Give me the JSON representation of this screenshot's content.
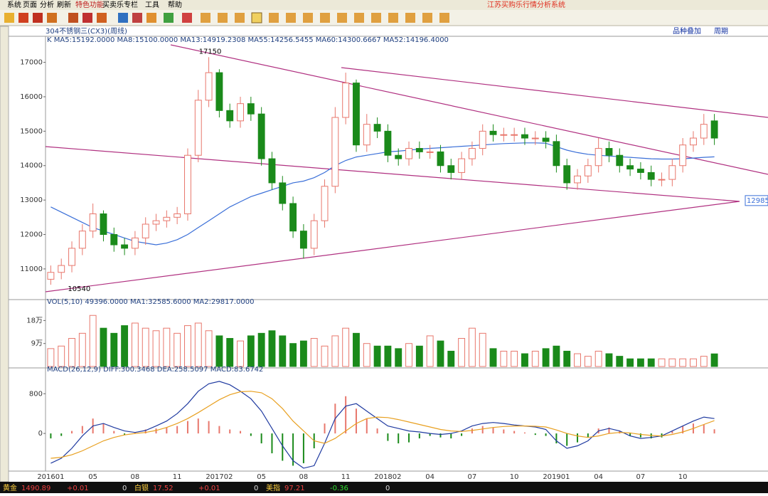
{
  "title": "江苏买购乐行情分析系统",
  "menu": [
    "系统",
    "页面",
    "分析",
    "刷新",
    "特色功能",
    "买卖乐专栏",
    "工具",
    "帮助"
  ],
  "toolbar_links": [
    "品种叠加",
    "周期"
  ],
  "instrument": "304不锈钢三(CX3)(周线)",
  "chart_data": [
    {
      "type": "candlestick",
      "indicator": "K  MA5:15192.0000  MA8:15100.0000  MA13:14919.2308  MA55:14256.5455  MA60:14300.6667  MA52:14196.4000",
      "open": [
        10700,
        10900,
        11100,
        11600,
        12100,
        12600,
        12000,
        11700,
        11600,
        11900,
        12300,
        12400,
        12500,
        12600,
        14300,
        15900,
        16700,
        15600,
        15300,
        15800,
        15500,
        14200,
        13500,
        12900,
        12100,
        11600,
        12400,
        13400,
        15400,
        16400,
        14600,
        15200,
        15000,
        14300,
        14200,
        14500,
        14400,
        14400,
        14000,
        13800,
        14200,
        14500,
        15000,
        14900,
        14900,
        14900,
        14800,
        14800,
        14700,
        14000,
        13500,
        13700,
        14000,
        14500,
        14300,
        14000,
        13900,
        13800,
        13600,
        13600,
        14000,
        14600,
        14800,
        15300
      ],
      "high": [
        11100,
        11300,
        11800,
        12300,
        12900,
        12700,
        12200,
        11900,
        12100,
        12500,
        12600,
        12700,
        12800,
        14500,
        16200,
        17150,
        16800,
        15800,
        16000,
        16000,
        15700,
        14400,
        13700,
        13100,
        12300,
        12600,
        13600,
        15700,
        16700,
        16500,
        15500,
        15400,
        15200,
        14500,
        14700,
        14700,
        14600,
        14600,
        14200,
        14400,
        14700,
        15200,
        15200,
        15100,
        15100,
        15100,
        15000,
        15000,
        14900,
        14200,
        13900,
        14200,
        14800,
        14700,
        14500,
        14200,
        14100,
        14000,
        13800,
        14200,
        14800,
        15000,
        15500,
        15500
      ],
      "low": [
        10540,
        10700,
        10900,
        11400,
        11900,
        11800,
        11500,
        11400,
        11400,
        11700,
        12100,
        12200,
        12300,
        12400,
        14100,
        15700,
        15400,
        15100,
        15100,
        15300,
        14000,
        13300,
        12700,
        11900,
        11300,
        11400,
        12200,
        13200,
        15200,
        14400,
        14400,
        14800,
        14100,
        14000,
        14000,
        14200,
        14200,
        13800,
        13600,
        13600,
        14000,
        14300,
        14700,
        14700,
        14700,
        14600,
        14600,
        14500,
        13800,
        13300,
        13300,
        13500,
        13800,
        14100,
        13800,
        13700,
        13600,
        13400,
        13400,
        13400,
        13800,
        14400,
        14600,
        14600
      ],
      "close": [
        10900,
        11100,
        11600,
        12100,
        12600,
        12000,
        11700,
        11600,
        11900,
        12300,
        12400,
        12500,
        12600,
        14300,
        15900,
        16700,
        15600,
        15300,
        15800,
        15500,
        14200,
        13500,
        12900,
        12100,
        11600,
        12400,
        13400,
        15400,
        16400,
        14600,
        15200,
        15000,
        14300,
        14200,
        14500,
        14400,
        14400,
        14000,
        13800,
        14200,
        14500,
        15000,
        14900,
        14900,
        14900,
        14800,
        14800,
        14700,
        14000,
        13500,
        13700,
        14000,
        14500,
        14300,
        14000,
        13900,
        13800,
        13600,
        13600,
        14000,
        14600,
        14800,
        15200,
        14800
      ],
      "up_color": "#e8776c",
      "down_color": "#1a8a1a",
      "lines": [
        {
          "color": "#3a6fd8",
          "values": [
            12800,
            12650,
            12500,
            12350,
            12200,
            12100,
            12000,
            11900,
            11800,
            11750,
            11700,
            11750,
            11850,
            12000,
            12200,
            12400,
            12600,
            12800,
            12950,
            13100,
            13200,
            13300,
            13400,
            13500,
            13550,
            13650,
            13800,
            14000,
            14150,
            14250,
            14300,
            14350,
            14400,
            14420,
            14450,
            14480,
            14500,
            14520,
            14540,
            14560,
            14580,
            14600,
            14620,
            14640,
            14650,
            14660,
            14660,
            14650,
            14550,
            14450,
            14380,
            14330,
            14300,
            14280,
            14260,
            14240,
            14220,
            14200,
            14190,
            14190,
            14200,
            14220,
            14240,
            14256
          ]
        }
      ],
      "marker": 12985,
      "ylim": [
        10130,
        17570
      ],
      "yticks": [
        11000,
        12000,
        13000,
        14000,
        15000,
        16000,
        17000
      ]
    },
    {
      "type": "bar",
      "indicator": "VOL(5,10) 49396.0000  MA1:32585.6000  MA2:29817.0000",
      "values": [
        70000,
        80000,
        110000,
        130000,
        200000,
        150000,
        130000,
        160000,
        170000,
        150000,
        140000,
        150000,
        130000,
        160000,
        170000,
        140000,
        120000,
        110000,
        100000,
        120000,
        130000,
        140000,
        120000,
        90000,
        100000,
        110000,
        80000,
        120000,
        150000,
        130000,
        90000,
        80000,
        80000,
        70000,
        90000,
        80000,
        120000,
        100000,
        60000,
        110000,
        150000,
        130000,
        70000,
        60000,
        60000,
        50000,
        60000,
        70000,
        80000,
        60000,
        50000,
        40000,
        60000,
        50000,
        40000,
        30000,
        30000,
        30000,
        30000,
        30000,
        30000,
        30000,
        40000,
        49396
      ],
      "ylim": [
        0,
        248000
      ],
      "yticks": [
        {
          "value": 90000,
          "label": "9万"
        },
        {
          "value": 180000,
          "label": "18万"
        }
      ]
    },
    {
      "type": "macd",
      "indicator": "MACD(26,12,9)  DIFF:300.3468  DEA:258.5097  MACD:83.6742",
      "categories": [
        "201601",
        null,
        null,
        null,
        "05",
        null,
        null,
        null,
        "08",
        null,
        null,
        null,
        "11",
        null,
        null,
        null,
        "201702",
        null,
        null,
        null,
        "05",
        null,
        null,
        null,
        "08",
        null,
        null,
        null,
        "11",
        null,
        null,
        null,
        "201802",
        null,
        null,
        null,
        "04",
        null,
        null,
        null,
        "07",
        null,
        null,
        null,
        "10",
        null,
        null,
        null,
        "201901",
        null,
        null,
        null,
        "04",
        null,
        null,
        null,
        "07",
        null,
        null,
        null,
        "10",
        null,
        null,
        null
      ],
      "values": [
        -100,
        -50,
        50,
        150,
        300,
        200,
        50,
        -30,
        20,
        80,
        100,
        120,
        150,
        250,
        300,
        250,
        150,
        80,
        50,
        -50,
        -200,
        -400,
        -550,
        -650,
        -600,
        -300,
        200,
        600,
        750,
        500,
        300,
        100,
        -150,
        -200,
        -180,
        -100,
        -50,
        -80,
        -100,
        -50,
        100,
        150,
        120,
        80,
        50,
        20,
        -30,
        -50,
        -200,
        -250,
        -180,
        -80,
        100,
        120,
        50,
        -50,
        -80,
        -100,
        -80,
        50,
        150,
        200,
        180,
        84
      ],
      "up_color": "#e8776c",
      "down_color": "#1a8a1a",
      "lines": [
        {
          "color": "#1f3aa0",
          "values": [
            -600,
            -500,
            -300,
            -50,
            150,
            200,
            120,
            50,
            20,
            60,
            150,
            250,
            400,
            600,
            850,
            1000,
            1050,
            980,
            850,
            700,
            450,
            100,
            -250,
            -550,
            -700,
            -650,
            -200,
            300,
            550,
            600,
            450,
            300,
            150,
            100,
            50,
            30,
            0,
            -20,
            0,
            50,
            150,
            200,
            220,
            200,
            170,
            150,
            130,
            80,
            -150,
            -300,
            -250,
            -150,
            50,
            100,
            50,
            -50,
            -100,
            -80,
            -50,
            50,
            150,
            250,
            330,
            300
          ]
        },
        {
          "color": "#e8a020",
          "values": [
            -500,
            -480,
            -430,
            -350,
            -250,
            -150,
            -80,
            -30,
            0,
            20,
            60,
            120,
            200,
            300,
            420,
            550,
            680,
            780,
            840,
            850,
            820,
            700,
            500,
            250,
            50,
            -150,
            -200,
            -100,
            50,
            200,
            300,
            330,
            320,
            280,
            230,
            180,
            130,
            80,
            50,
            40,
            60,
            90,
            120,
            140,
            150,
            150,
            145,
            130,
            70,
            0,
            -50,
            -80,
            -50,
            0,
            20,
            10,
            -20,
            -40,
            -50,
            -20,
            30,
            100,
            180,
            258
          ]
        }
      ],
      "ylim": [
        -730,
        1263
      ],
      "yticks": [
        0,
        800
      ]
    }
  ],
  "status_bar": [
    {
      "name": "黄金",
      "price": "1490.89",
      "change": "+0.01",
      "extra": "0"
    },
    {
      "name": "白银",
      "price": "17.52",
      "change": "+0.01",
      "extra": "0"
    },
    {
      "name": "美指",
      "price": "97.21",
      "change": "-0.36",
      "extra": "0"
    }
  ]
}
